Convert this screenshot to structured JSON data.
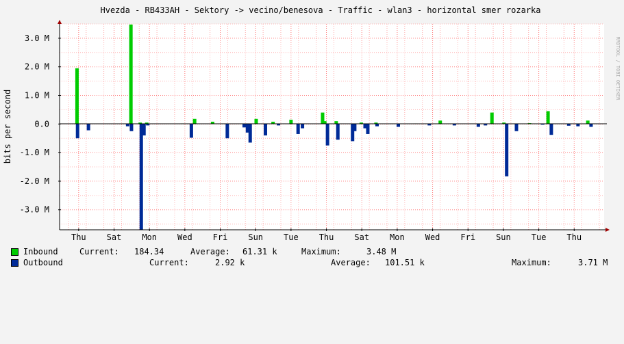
{
  "chart_data": {
    "type": "area",
    "title": "Hvezda - RB433AH - Sektory -> vecino/benesova - Traffic - wlan3 - horizontal smer rozarka",
    "ylabel": "bits per second",
    "watermark": "RRDTOOL / TOBI OETIKER",
    "ylim": [
      -3.7,
      3.5
    ],
    "yticks": [
      {
        "v": 3.0,
        "label": "3.0 M"
      },
      {
        "v": 2.0,
        "label": "2.0 M"
      },
      {
        "v": 1.0,
        "label": "1.0 M"
      },
      {
        "v": 0.0,
        "label": "0.0"
      },
      {
        "v": -1.0,
        "label": "-1.0 M"
      },
      {
        "v": -2.0,
        "label": "-2.0 M"
      },
      {
        "v": -3.0,
        "label": "-3.0 M"
      }
    ],
    "xlim": [
      0,
      100
    ],
    "xticks": [
      {
        "x": 3.5,
        "label": "Thu"
      },
      {
        "x": 10.0,
        "label": "Sat"
      },
      {
        "x": 16.5,
        "label": "Mon"
      },
      {
        "x": 23.0,
        "label": "Wed"
      },
      {
        "x": 29.5,
        "label": "Fri"
      },
      {
        "x": 36.0,
        "label": "Sun"
      },
      {
        "x": 42.5,
        "label": "Tue"
      },
      {
        "x": 49.0,
        "label": "Thu"
      },
      {
        "x": 55.5,
        "label": "Sat"
      },
      {
        "x": 62.0,
        "label": "Mon"
      },
      {
        "x": 68.5,
        "label": "Wed"
      },
      {
        "x": 75.0,
        "label": "Fri"
      },
      {
        "x": 81.5,
        "label": "Sun"
      },
      {
        "x": 88.0,
        "label": "Tue"
      },
      {
        "x": 94.5,
        "label": "Thu"
      }
    ],
    "series": [
      {
        "name": "Inbound",
        "color": "#00cc00",
        "sign": 1,
        "points": [
          [
            3.2,
            1.95
          ],
          [
            13.1,
            3.48
          ],
          [
            14.8,
            0.05
          ],
          [
            16.0,
            0.05
          ],
          [
            22.6,
            0.02
          ],
          [
            24.8,
            0.18
          ],
          [
            28.1,
            0.08
          ],
          [
            36.1,
            0.18
          ],
          [
            39.2,
            0.08
          ],
          [
            42.5,
            0.15
          ],
          [
            48.3,
            0.4
          ],
          [
            48.7,
            0.1
          ],
          [
            50.8,
            0.1
          ],
          [
            55.4,
            0.05
          ],
          [
            58.1,
            0.05
          ],
          [
            65.4,
            0.02
          ],
          [
            69.9,
            0.12
          ],
          [
            79.4,
            0.4
          ],
          [
            81.6,
            0.05
          ],
          [
            86.3,
            0.03
          ],
          [
            89.7,
            0.45
          ],
          [
            97.0,
            0.12
          ]
        ]
      },
      {
        "name": "Outbound",
        "color": "#002a97",
        "sign": -1,
        "points": [
          [
            3.3,
            0.5
          ],
          [
            5.3,
            0.22
          ],
          [
            12.5,
            0.08
          ],
          [
            13.2,
            0.25
          ],
          [
            15.0,
            3.71
          ],
          [
            15.5,
            0.4
          ],
          [
            16.2,
            0.05
          ],
          [
            24.2,
            0.48
          ],
          [
            30.8,
            0.5
          ],
          [
            33.9,
            0.12
          ],
          [
            34.5,
            0.3
          ],
          [
            35.0,
            0.65
          ],
          [
            37.8,
            0.4
          ],
          [
            40.2,
            0.05
          ],
          [
            43.8,
            0.35
          ],
          [
            44.6,
            0.15
          ],
          [
            49.2,
            0.75
          ],
          [
            51.1,
            0.55
          ],
          [
            53.8,
            0.6
          ],
          [
            54.2,
            0.25
          ],
          [
            56.1,
            0.15
          ],
          [
            56.6,
            0.35
          ],
          [
            58.3,
            0.08
          ],
          [
            62.2,
            0.1
          ],
          [
            67.9,
            0.05
          ],
          [
            72.5,
            0.05
          ],
          [
            76.9,
            0.1
          ],
          [
            78.2,
            0.05
          ],
          [
            82.1,
            1.83
          ],
          [
            83.9,
            0.25
          ],
          [
            88.7,
            0.02
          ],
          [
            90.3,
            0.38
          ],
          [
            93.5,
            0.06
          ],
          [
            95.2,
            0.08
          ],
          [
            97.6,
            0.1
          ]
        ]
      }
    ]
  },
  "legend": [
    {
      "name": "Inbound",
      "color": "#00cc00",
      "current_label": "Current:",
      "current": "184.34",
      "average_label": "Average:",
      "average": "61.31 k",
      "maximum_label": "Maximum:",
      "maximum": "3.48 M"
    },
    {
      "name": "Outbound",
      "color": "#002a97",
      "current_label": "Current:",
      "current": "2.92 k",
      "average_label": "Average:",
      "average": "101.51 k",
      "maximum_label": "Maximum:",
      "maximum": "3.71 M"
    }
  ]
}
